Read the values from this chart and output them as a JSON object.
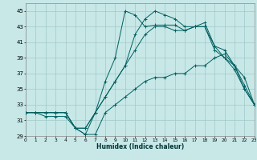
{
  "xlabel": "Humidex (Indice chaleur)",
  "bg_color": "#c8e8e8",
  "grid_color": "#a0c8c8",
  "line_color": "#006060",
  "xlim": [
    0,
    23
  ],
  "ylim": [
    29,
    46
  ],
  "xticks": [
    0,
    1,
    2,
    3,
    4,
    5,
    6,
    7,
    8,
    9,
    10,
    11,
    12,
    13,
    14,
    15,
    16,
    17,
    18,
    19,
    20,
    21,
    22,
    23
  ],
  "yticks": [
    29,
    31,
    33,
    35,
    37,
    39,
    41,
    43,
    45
  ],
  "line1_y": [
    32,
    32,
    32,
    32,
    32,
    30,
    30,
    32,
    34,
    36,
    38,
    40,
    42,
    43,
    43,
    42.5,
    42.5,
    43,
    43,
    40,
    39,
    37.5,
    35,
    33
  ],
  "line2_y": [
    32,
    32,
    31.5,
    31.5,
    31.5,
    30,
    29.2,
    29.2,
    32,
    33,
    34,
    35,
    36,
    36.5,
    36.5,
    37,
    37,
    38,
    38,
    39,
    39.5,
    38,
    36.5,
    33
  ],
  "line3_y": [
    32,
    32,
    32,
    32,
    32,
    30,
    29.2,
    32,
    36,
    39,
    45,
    44.5,
    43,
    43.2,
    43.2,
    43.2,
    42.5,
    43,
    43.5,
    40.5,
    40,
    38,
    35.5,
    33
  ],
  "line4_y": [
    32,
    32,
    32,
    32,
    32,
    30,
    30,
    32,
    34,
    36,
    38,
    42,
    44,
    45,
    44.5,
    44,
    43,
    43,
    43,
    40.5,
    39,
    38,
    35,
    33
  ]
}
